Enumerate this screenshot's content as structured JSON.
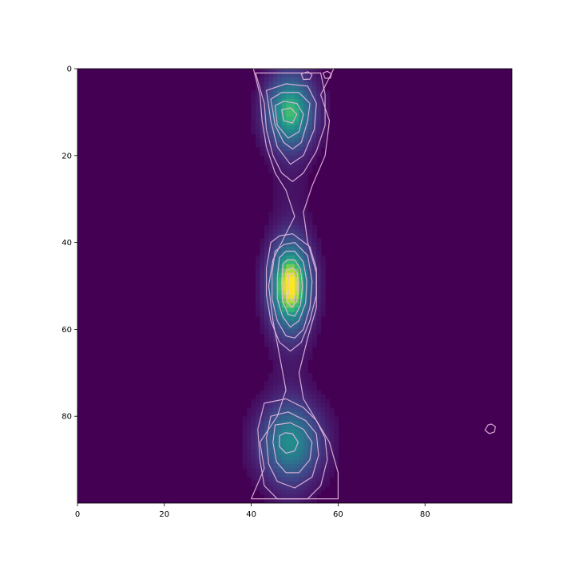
{
  "chart_data": {
    "type": "heatmap",
    "title": "",
    "xlabel": "",
    "ylabel": "",
    "xlim": [
      0,
      100
    ],
    "ylim": [
      100,
      0
    ],
    "x_ticks": [
      0,
      20,
      40,
      60,
      80
    ],
    "y_ticks": [
      0,
      20,
      40,
      60,
      80
    ],
    "colormap": "viridis",
    "background_color": "#440154",
    "contour_color": "#e6b8e0",
    "grid": false,
    "legend": "none",
    "peaks": [
      {
        "x": 49,
        "y": 10,
        "intensity": 0.72,
        "sx": 3.8,
        "sy": 5.5
      },
      {
        "x": 49,
        "y": 50,
        "intensity": 1.0,
        "sx": 3.2,
        "sy": 6.5
      },
      {
        "x": 49,
        "y": 86,
        "intensity": 0.55,
        "sx": 5.0,
        "sy": 6.0
      }
    ],
    "contours": [
      {
        "level": 0.08,
        "points": [
          [
            40.5,
            0
          ],
          [
            42,
            6
          ],
          [
            42.5,
            12
          ],
          [
            43.5,
            18
          ],
          [
            45.5,
            24
          ],
          [
            48,
            28
          ],
          [
            50,
            34
          ],
          [
            47,
            40
          ],
          [
            45,
            44
          ],
          [
            44,
            50
          ],
          [
            45,
            58
          ],
          [
            46.5,
            66
          ],
          [
            48,
            74
          ],
          [
            46,
            80
          ],
          [
            42,
            86
          ],
          [
            43,
            92
          ],
          [
            40,
            99
          ],
          [
            60,
            99
          ],
          [
            60,
            93
          ],
          [
            58,
            86
          ],
          [
            55,
            81
          ],
          [
            52,
            76
          ],
          [
            51,
            70
          ],
          [
            53,
            62
          ],
          [
            55,
            55
          ],
          [
            55,
            47
          ],
          [
            53,
            40
          ],
          [
            52,
            33
          ],
          [
            54,
            27
          ],
          [
            57,
            20
          ],
          [
            58,
            12
          ],
          [
            56,
            6
          ],
          [
            59,
            0
          ]
        ]
      },
      {
        "level": 0.15,
        "points": [
          [
            41,
            1
          ],
          [
            43,
            8
          ],
          [
            43.5,
            14
          ],
          [
            45,
            20
          ],
          [
            47,
            24
          ],
          [
            49.5,
            26
          ],
          [
            52,
            24
          ],
          [
            55,
            19
          ],
          [
            57,
            13
          ],
          [
            57,
            6
          ],
          [
            56,
            1
          ]
        ]
      },
      {
        "level": 0.22,
        "points": [
          [
            43.5,
            5
          ],
          [
            44.5,
            12
          ],
          [
            46,
            18
          ],
          [
            49,
            22
          ],
          [
            52,
            20
          ],
          [
            54.5,
            14
          ],
          [
            55,
            8
          ],
          [
            53,
            4
          ],
          [
            48,
            3.5
          ]
        ]
      },
      {
        "level": 0.35,
        "points": [
          [
            44.5,
            7
          ],
          [
            45.5,
            13
          ],
          [
            47.5,
            17
          ],
          [
            49.5,
            18.5
          ],
          [
            51.5,
            17
          ],
          [
            53,
            12
          ],
          [
            53.5,
            8
          ],
          [
            51,
            5.5
          ],
          [
            47,
            5.5
          ]
        ]
      },
      {
        "level": 0.5,
        "points": [
          [
            45.5,
            8.5
          ],
          [
            46,
            13
          ],
          [
            48.5,
            16
          ],
          [
            51,
            14.5
          ],
          [
            52,
            10.5
          ],
          [
            50.5,
            8
          ],
          [
            47.5,
            7.5
          ]
        ]
      },
      {
        "level": 0.62,
        "points": [
          [
            47,
            9.5
          ],
          [
            47.5,
            12
          ],
          [
            49.5,
            12.5
          ],
          [
            50.5,
            10.5
          ],
          [
            49,
            9
          ]
        ]
      },
      {
        "level": 0.1,
        "points": [
          [
            44.5,
            40
          ],
          [
            43.5,
            46
          ],
          [
            43.5,
            52
          ],
          [
            44.5,
            58
          ],
          [
            46.5,
            63
          ],
          [
            49,
            65
          ],
          [
            51.5,
            63
          ],
          [
            53.5,
            58
          ],
          [
            55,
            52
          ],
          [
            55,
            46
          ],
          [
            53.5,
            41
          ],
          [
            49.5,
            38
          ],
          [
            46.5,
            38.5
          ]
        ]
      },
      {
        "level": 0.2,
        "points": [
          [
            45.5,
            42
          ],
          [
            44.8,
            47
          ],
          [
            44.8,
            53
          ],
          [
            46,
            58
          ],
          [
            48,
            61.5
          ],
          [
            50,
            62
          ],
          [
            52,
            60
          ],
          [
            53.5,
            55
          ],
          [
            54,
            49
          ],
          [
            53,
            43
          ],
          [
            50,
            40
          ],
          [
            47.5,
            40.5
          ]
        ]
      },
      {
        "level": 0.35,
        "points": [
          [
            46.5,
            43.5
          ],
          [
            46,
            48
          ],
          [
            46,
            53
          ],
          [
            47.2,
            57
          ],
          [
            49,
            59.5
          ],
          [
            51,
            58
          ],
          [
            52.5,
            54
          ],
          [
            52.8,
            49
          ],
          [
            52,
            44.5
          ],
          [
            50,
            42
          ],
          [
            48,
            42
          ]
        ]
      },
      {
        "level": 0.5,
        "points": [
          [
            47.3,
            45
          ],
          [
            47,
            49
          ],
          [
            47.2,
            53.5
          ],
          [
            48.5,
            56.5
          ],
          [
            50,
            57
          ],
          [
            51.3,
            54.5
          ],
          [
            51.8,
            50
          ],
          [
            51.3,
            46
          ],
          [
            50,
            44
          ],
          [
            48.3,
            44
          ]
        ]
      },
      {
        "level": 0.7,
        "points": [
          [
            48,
            46.5
          ],
          [
            47.8,
            50
          ],
          [
            48.2,
            53.5
          ],
          [
            49.3,
            55
          ],
          [
            50.5,
            53.5
          ],
          [
            50.9,
            50
          ],
          [
            50.6,
            47
          ],
          [
            49.5,
            45.8
          ]
        ]
      },
      {
        "level": 0.85,
        "points": [
          [
            48.6,
            47.5
          ],
          [
            48.4,
            50.5
          ],
          [
            48.9,
            53
          ],
          [
            49.8,
            53.5
          ],
          [
            50.3,
            51
          ],
          [
            50.2,
            48
          ],
          [
            49.5,
            47
          ]
        ]
      },
      {
        "level": 0.12,
        "points": [
          [
            43,
            77
          ],
          [
            41.5,
            83
          ],
          [
            42,
            90
          ],
          [
            43,
            96
          ],
          [
            46,
            99
          ],
          [
            53,
            99
          ],
          [
            56,
            96
          ],
          [
            57.5,
            90
          ],
          [
            57,
            85
          ],
          [
            55,
            81
          ],
          [
            52,
            78
          ],
          [
            48,
            76
          ]
        ]
      },
      {
        "level": 0.22,
        "points": [
          [
            44.5,
            80
          ],
          [
            43.5,
            85
          ],
          [
            44,
            91
          ],
          [
            46,
            95
          ],
          [
            50,
            96.5
          ],
          [
            54,
            94
          ],
          [
            55.5,
            89
          ],
          [
            55,
            84
          ],
          [
            52.5,
            81
          ],
          [
            48.5,
            79
          ]
        ]
      },
      {
        "level": 0.35,
        "points": [
          [
            45.5,
            82
          ],
          [
            45,
            86
          ],
          [
            45.8,
            90.5
          ],
          [
            48,
            93
          ],
          [
            51,
            93
          ],
          [
            53.5,
            90
          ],
          [
            54,
            86
          ],
          [
            52,
            83
          ],
          [
            49,
            81.5
          ]
        ]
      },
      {
        "level": 0.45,
        "points": [
          [
            46.5,
            84.5
          ],
          [
            46.5,
            87
          ],
          [
            48,
            88.5
          ],
          [
            50,
            88
          ],
          [
            50.8,
            86
          ],
          [
            49.5,
            84
          ],
          [
            47.8,
            83.8
          ]
        ]
      },
      {
        "level": 0.1,
        "points": [
          [
            94.5,
            82
          ],
          [
            93.8,
            83.2
          ],
          [
            94.8,
            84
          ],
          [
            96,
            83.6
          ],
          [
            96.2,
            82.4
          ],
          [
            95.3,
            81.8
          ]
        ]
      },
      {
        "level": 0.1,
        "points": [
          [
            51.5,
            1.2
          ],
          [
            52,
            2.5
          ],
          [
            53.5,
            2.4
          ],
          [
            54,
            1.4
          ],
          [
            53,
            0.7
          ]
        ]
      },
      {
        "level": 0.1,
        "points": [
          [
            56.5,
            1
          ],
          [
            57,
            2.2
          ],
          [
            58.2,
            2.2
          ],
          [
            58.5,
            1.2
          ],
          [
            57.5,
            0.6
          ]
        ]
      }
    ]
  }
}
